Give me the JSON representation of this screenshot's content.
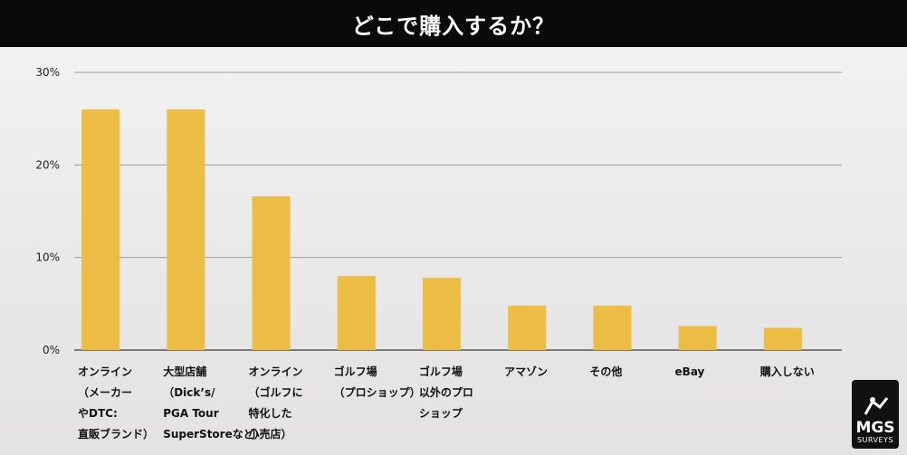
{
  "title": "どこで購入するか？",
  "logo": {
    "main": "MGS",
    "sub": "SURVEYS"
  },
  "colors": {
    "bar": "#ecbc44",
    "grid": "#9a9a9a",
    "title_bg": "#0a0a0a"
  },
  "chart_data": {
    "type": "bar",
    "title": "どこで購入するか？",
    "xlabel": "",
    "ylabel": "",
    "ylim": [
      0,
      30
    ],
    "yticks": [
      "0%",
      "10%",
      "20%",
      "30%"
    ],
    "yticks_values": [
      0,
      10,
      20,
      30
    ],
    "grid": true,
    "categories": [
      "オンライン\n（メーカー\nやDTC:\n直販ブランド）",
      "大型店舗\n（Dick’s/\nPGA Tour\nSuperStoreなど）",
      "オンライン\n（ゴルフに\n特化した\n小売店）",
      "ゴルフ場\n（プロショップ）",
      "ゴルフ場\n以外のプロ\nショップ",
      "アマゾン",
      "その他",
      "eBay",
      "購入しない"
    ],
    "values": [
      26.0,
      26.0,
      16.6,
      8.0,
      7.8,
      4.8,
      4.8,
      2.6,
      2.4
    ]
  }
}
